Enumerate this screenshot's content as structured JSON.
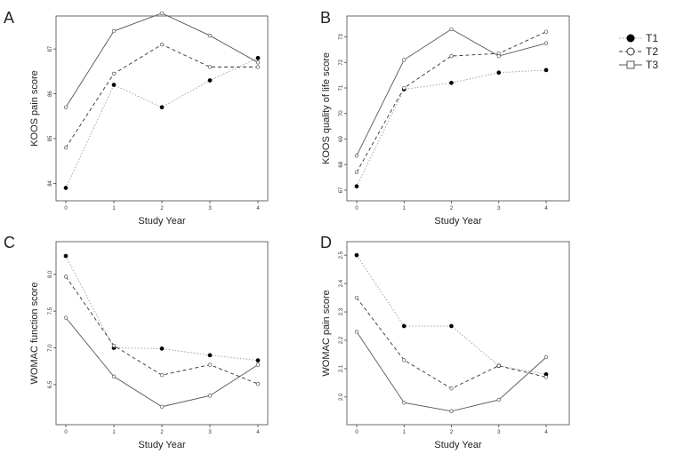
{
  "figure": {
    "series_legend": [
      {
        "label": "T1",
        "marker": "filled",
        "dash": "dotted"
      },
      {
        "label": "T2",
        "marker": "hollow",
        "dash": "dashed"
      },
      {
        "label": "T3",
        "marker": "square",
        "dash": "solid"
      }
    ]
  },
  "chart_data": [
    {
      "panel": "A",
      "type": "line",
      "xlabel": "Study Year",
      "ylabel": "KOOS pain score",
      "x": [
        0,
        1,
        2,
        3,
        4
      ],
      "xticks": [
        "0",
        "1",
        "2",
        "3",
        "4"
      ],
      "yticks": [
        "84",
        "85",
        "86",
        "87"
      ],
      "ylim": [
        83.85,
        87.5
      ],
      "grid": false,
      "legend": "none",
      "series": [
        {
          "name": "T1",
          "values": [
            83.9,
            86.2,
            85.7,
            86.3,
            86.8
          ]
        },
        {
          "name": "T2",
          "values": [
            84.8,
            86.45,
            87.1,
            86.6,
            86.6
          ]
        },
        {
          "name": "T3",
          "values": [
            85.7,
            87.4,
            87.8,
            87.3,
            86.7
          ]
        }
      ]
    },
    {
      "panel": "B",
      "type": "line",
      "xlabel": "Study Year",
      "ylabel": "KOOS quality of life score",
      "x": [
        0,
        1,
        2,
        3,
        4
      ],
      "xticks": [
        "0",
        "1",
        "2",
        "3",
        "4"
      ],
      "yticks": [
        "67",
        "68",
        "69",
        "70",
        "71",
        "72",
        "73"
      ],
      "ylim": [
        67,
        73.4
      ],
      "grid": false,
      "legend": "none",
      "series": [
        {
          "name": "T1",
          "values": [
            67.15,
            70.95,
            71.2,
            71.6,
            71.7
          ]
        },
        {
          "name": "T2",
          "values": [
            67.7,
            71.0,
            72.25,
            72.35,
            73.2
          ]
        },
        {
          "name": "T3",
          "values": [
            68.35,
            72.1,
            73.3,
            72.25,
            72.75
          ]
        }
      ]
    },
    {
      "panel": "C",
      "type": "line",
      "xlabel": "Study Year",
      "ylabel": "WOMAC function score",
      "x": [
        0,
        1,
        2,
        3,
        4
      ],
      "xticks": [
        "0",
        "1",
        "2",
        "3",
        "4"
      ],
      "yticks": [
        "6.5",
        "7.0",
        "7.5",
        "8.0"
      ],
      "ylim": [
        6.1,
        8.3
      ],
      "grid": false,
      "legend": "none",
      "series": [
        {
          "name": "T1",
          "values": [
            8.25,
            7.0,
            6.99,
            6.9,
            6.83
          ]
        },
        {
          "name": "T2",
          "values": [
            7.97,
            7.03,
            6.63,
            6.77,
            6.51
          ]
        },
        {
          "name": "T3",
          "values": [
            7.41,
            6.61,
            6.2,
            6.35,
            6.77
          ]
        }
      ]
    },
    {
      "panel": "D",
      "type": "line",
      "xlabel": "Study Year",
      "ylabel": "WOMAC pain score",
      "x": [
        0,
        1,
        2,
        3,
        4
      ],
      "xticks": [
        "0",
        "1",
        "2",
        "3",
        "4"
      ],
      "yticks": [
        "2.0",
        "2.1",
        "2.2",
        "2.3",
        "2.4",
        "2.5"
      ],
      "ylim": [
        1.94,
        2.51
      ],
      "grid": false,
      "legend": "none",
      "series": [
        {
          "name": "T1",
          "values": [
            2.5,
            2.25,
            2.25,
            2.11,
            2.08
          ]
        },
        {
          "name": "T2",
          "values": [
            2.35,
            2.13,
            2.03,
            2.11,
            2.07
          ]
        },
        {
          "name": "T3",
          "values": [
            2.23,
            1.98,
            1.95,
            1.99,
            2.14
          ]
        }
      ]
    }
  ]
}
